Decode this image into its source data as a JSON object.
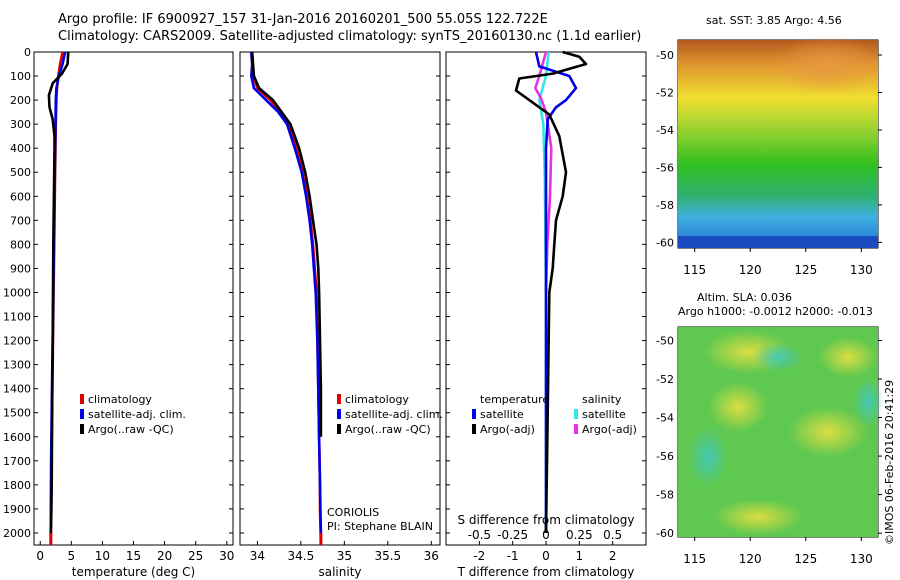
{
  "header": {
    "line1": "Argo profile: IF 6900927_157 31-Jan-2016 20160201_500 55.05S 122.722E",
    "line2": "Climatology: CARS2009. Satellite-adjusted climatology: synTS_20160130.nc (1.1d earlier)"
  },
  "colors": {
    "climatology": "#e00000",
    "satellite": "#0000e6",
    "argo": "#000000",
    "satellite_s": "#33e6e6",
    "argo_s": "#e633e6"
  },
  "labels": {
    "coriolis": "CORIOLIS",
    "pi": "PI: Stephane BLAIN",
    "sst_title": "sat. SST: 3.85 Argo: 4.56",
    "sla_line1": "Altim. SLA: 0.036",
    "sla_line2": "Argo h1000: -0.0012 h2000: -0.013",
    "side_stamp": "©IMOS 06-Feb-2016 20:41:29"
  },
  "legend_ts": [
    "climatology",
    "satellite-adj. clim.",
    "Argo(..raw -QC)"
  ],
  "legend_diff": {
    "temp_header": "temperature",
    "sal_header": "salinity",
    "temp_items": [
      "satellite",
      "Argo(-adj)"
    ],
    "sal_items": [
      "satellite",
      "Argo(-adj)"
    ]
  },
  "chart_data": [
    {
      "type": "line",
      "xlabel": "temperature (deg C)",
      "ylabel": "",
      "xlim": [
        -1,
        31
      ],
      "ylim": [
        2050,
        0
      ],
      "xticks": [
        0,
        5,
        10,
        15,
        20,
        25,
        30
      ],
      "yticks": [
        0,
        100,
        200,
        300,
        400,
        500,
        600,
        700,
        800,
        900,
        1000,
        1100,
        1200,
        1300,
        1400,
        1500,
        1600,
        1700,
        1800,
        1900,
        2000
      ],
      "series": [
        {
          "name": "climatology",
          "x": [
            3.6,
            3.2,
            2.9,
            2.7,
            2.6,
            2.5,
            2.45,
            2.4,
            2.35,
            2.3,
            2.25,
            2.2,
            2.15,
            2.1,
            2.05,
            2.0,
            1.95,
            1.9,
            1.85,
            1.8,
            1.75,
            1.7
          ],
          "y": [
            0,
            50,
            100,
            150,
            200,
            300,
            400,
            500,
            600,
            700,
            800,
            900,
            1000,
            1100,
            1200,
            1300,
            1400,
            1500,
            1600,
            1700,
            1900,
            2050
          ]
        },
        {
          "name": "satellite-adj. clim.",
          "x": [
            4.0,
            3.6,
            3.0,
            2.6,
            2.5,
            2.45,
            2.4,
            2.35,
            2.3,
            2.25,
            2.2,
            2.15,
            2.1,
            2.05,
            2.0,
            1.95,
            1.9,
            1.85,
            1.8,
            1.75,
            1.7
          ],
          "y": [
            0,
            50,
            100,
            150,
            200,
            300,
            400,
            500,
            600,
            700,
            800,
            900,
            1000,
            1100,
            1200,
            1300,
            1400,
            1500,
            1600,
            1700,
            2000
          ]
        },
        {
          "name": "Argo(..raw -QC)",
          "x": [
            4.5,
            4.4,
            3.5,
            2.0,
            1.4,
            1.5,
            2.0,
            2.3,
            2.3,
            2.25,
            2.2,
            2.15,
            2.1,
            2.05,
            2.0,
            1.95,
            1.9,
            1.85,
            1.8,
            1.75,
            1.7
          ],
          "y": [
            0,
            50,
            90,
            130,
            180,
            230,
            280,
            350,
            400,
            500,
            600,
            700,
            800,
            1000,
            1200,
            1400,
            1600,
            1800,
            1900,
            1950,
            2000
          ]
        }
      ]
    },
    {
      "type": "line",
      "xlabel": "salinity",
      "ylabel": "",
      "xlim": [
        33.8,
        36.1
      ],
      "ylim": [
        2050,
        0
      ],
      "xticks": [
        34,
        34.5,
        35,
        35.5,
        36
      ],
      "xticklabels": [
        "34",
        "34.5",
        "35",
        "35.5",
        "36"
      ],
      "series": [
        {
          "name": "climatology",
          "x": [
            33.93,
            33.94,
            33.95,
            34.0,
            34.15,
            34.27,
            34.36,
            34.45,
            34.52,
            34.57,
            34.61,
            34.64,
            34.66,
            34.68,
            34.69,
            34.7,
            34.71,
            34.72,
            34.72,
            34.73
          ],
          "y": [
            0,
            50,
            100,
            150,
            200,
            250,
            300,
            400,
            500,
            600,
            700,
            800,
            900,
            1000,
            1200,
            1400,
            1600,
            1800,
            1900,
            2050
          ]
        },
        {
          "name": "satellite-adj. clim.",
          "x": [
            33.93,
            33.94,
            33.93,
            33.96,
            34.1,
            34.24,
            34.34,
            34.43,
            34.51,
            34.56,
            34.6,
            34.63,
            34.65,
            34.67,
            34.69,
            34.7,
            34.71,
            34.72,
            34.73
          ],
          "y": [
            0,
            50,
            100,
            150,
            200,
            250,
            300,
            400,
            500,
            600,
            700,
            800,
            900,
            1000,
            1200,
            1400,
            1600,
            1800,
            2000
          ]
        },
        {
          "name": "Argo(..raw -QC)",
          "x": [
            33.94,
            33.95,
            33.96,
            34.02,
            34.18,
            34.28,
            34.38,
            34.48,
            34.55,
            34.6,
            34.64,
            34.68,
            34.7,
            34.71,
            34.72,
            34.73,
            34.73
          ],
          "y": [
            0,
            50,
            100,
            150,
            200,
            250,
            300,
            400,
            500,
            600,
            700,
            800,
            900,
            1000,
            1200,
            1400,
            1600
          ]
        }
      ]
    },
    {
      "type": "line",
      "xlabel": "T difference from climatology",
      "top_axis_label": "S difference from climatology",
      "xlim": [
        -3,
        3
      ],
      "ylim": [
        2050,
        0
      ],
      "xticks": [
        -2,
        -1,
        0,
        1,
        2
      ],
      "top_ticks": [
        -0.5,
        -0.25,
        0,
        0.25,
        0.5
      ],
      "top_ticklabels": [
        "-0.5",
        "-0.25",
        "0",
        "0.25",
        "0.5"
      ],
      "series": [
        {
          "name": "temperature satellite",
          "axis": "T",
          "x": [
            -0.3,
            -0.2,
            0.7,
            0.9,
            0.6,
            0.3,
            0.05,
            0.0,
            0.0,
            0.0,
            0.0,
            0.0
          ],
          "y": [
            0,
            60,
            100,
            150,
            200,
            230,
            280,
            400,
            700,
            1000,
            1500,
            2000
          ]
        },
        {
          "name": "temperature Argo(-adj)",
          "axis": "T",
          "x": [
            0.5,
            1.0,
            1.2,
            0.2,
            -0.8,
            -0.9,
            -0.5,
            0.1,
            0.4,
            0.6,
            0.5,
            0.3,
            0.25,
            0.2,
            0.1,
            0.05,
            0.0
          ],
          "y": [
            0,
            20,
            50,
            90,
            110,
            160,
            200,
            260,
            350,
            500,
            600,
            700,
            800,
            900,
            1000,
            1500,
            2000
          ]
        },
        {
          "name": "salinity satellite",
          "axis": "S",
          "x": [
            0.02,
            0.0,
            -0.05,
            -0.02,
            -0.01,
            0.0,
            0.0
          ],
          "y": [
            0,
            100,
            200,
            300,
            500,
            1000,
            2000
          ]
        },
        {
          "name": "salinity Argo(-adj)",
          "axis": "S",
          "x": [
            0.0,
            -0.05,
            -0.08,
            -0.04,
            0.0,
            0.04,
            0.03,
            0.02,
            0.01,
            0.0
          ],
          "y": [
            0,
            100,
            150,
            190,
            250,
            400,
            600,
            700,
            800,
            1000
          ]
        }
      ]
    },
    {
      "type": "heatmap",
      "title": "sat. SST: 3.85 Argo: 4.56",
      "xlim": [
        113.5,
        131.5
      ],
      "ylim": [
        -60.3,
        -49.2
      ],
      "xticks": [
        115,
        120,
        125,
        130
      ],
      "yticks": [
        -50,
        -52,
        -54,
        -56,
        -58,
        -60
      ]
    },
    {
      "type": "heatmap",
      "title": "Altim. SLA: 0.036",
      "xlim": [
        113.5,
        131.5
      ],
      "ylim": [
        -60.2,
        -49.3
      ],
      "xticks": [
        115,
        120,
        125,
        130
      ],
      "yticks": [
        -50,
        -52,
        -54,
        -56,
        -58,
        -60
      ]
    }
  ]
}
